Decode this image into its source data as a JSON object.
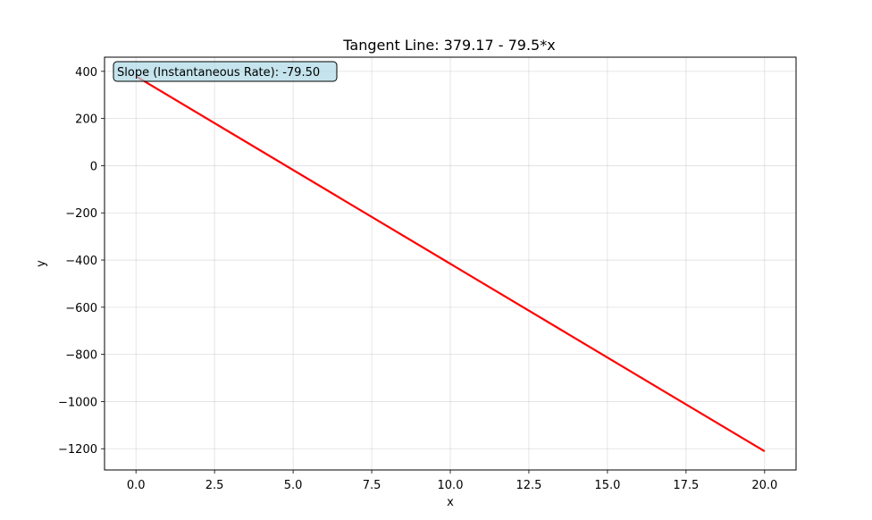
{
  "chart_data": {
    "type": "line",
    "title": "Tangent Line: 379.17 - 79.5*x",
    "xlabel": "x",
    "ylabel": "y",
    "xlim": [
      -1.0,
      21.0
    ],
    "ylim": [
      -1290,
      460
    ],
    "x_ticks": [
      0.0,
      2.5,
      5.0,
      7.5,
      10.0,
      12.5,
      15.0,
      17.5,
      20.0
    ],
    "x_tick_labels": [
      "0.0",
      "2.5",
      "5.0",
      "7.5",
      "10.0",
      "12.5",
      "15.0",
      "17.5",
      "20.0"
    ],
    "y_ticks": [
      400,
      200,
      0,
      -200,
      -400,
      -600,
      -800,
      -1000,
      -1200
    ],
    "y_tick_labels": [
      "400",
      "200",
      "0",
      "−200",
      "−400",
      "−600",
      "−800",
      "−1000",
      "−1200"
    ],
    "grid": true,
    "series": [
      {
        "color": "#ff0000",
        "x": [
          0,
          20
        ],
        "y": [
          379.17,
          -1210.83
        ]
      }
    ],
    "annotation": {
      "text": "Slope (Instantaneous Rate): -79.50",
      "box_fill": "#add8e6",
      "position": "top-left"
    }
  }
}
